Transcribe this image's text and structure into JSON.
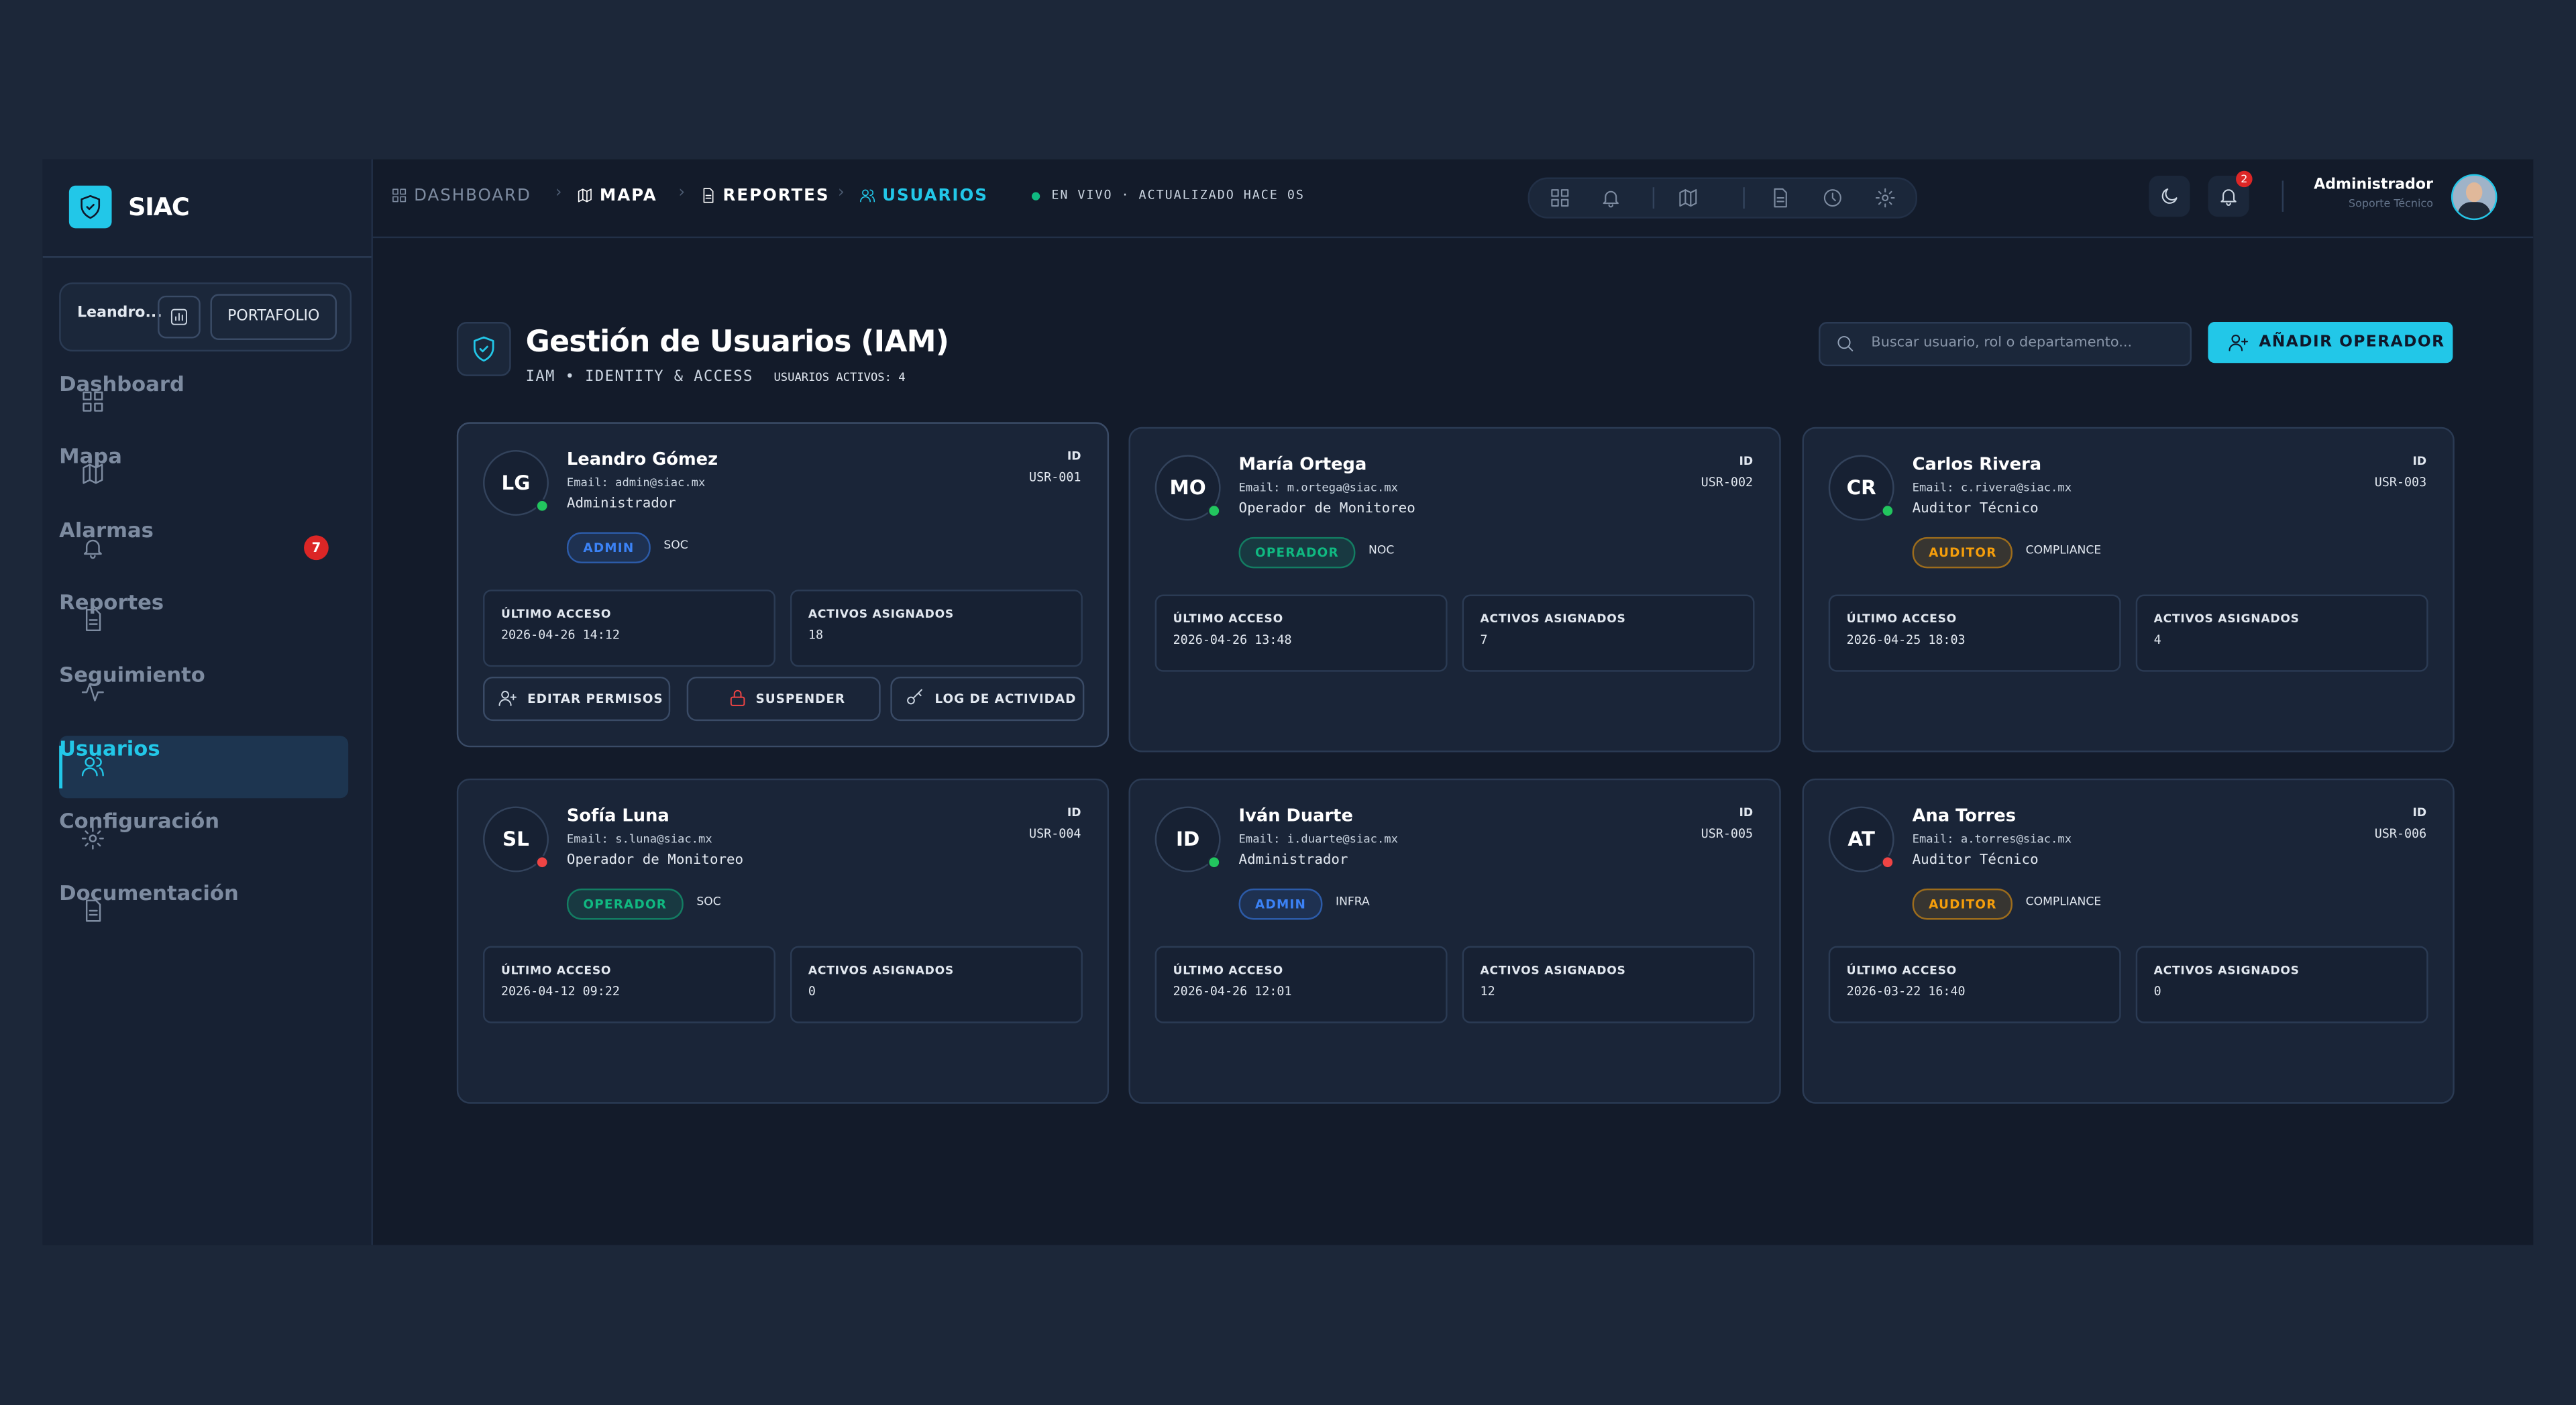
{
  "sidebar": {
    "brand": "SIAC",
    "user": "Leandro...",
    "portfolio": "PORTAFOLIO",
    "nav": [
      {
        "label": "Dashboard",
        "icon": "grid"
      },
      {
        "label": "Mapa",
        "icon": "map"
      },
      {
        "label": "Alarmas",
        "icon": "bell",
        "badge": 7
      },
      {
        "label": "Reportes",
        "icon": "doc"
      },
      {
        "label": "Seguimiento",
        "icon": "pulse"
      },
      {
        "label": "Usuarios",
        "icon": "users"
      },
      {
        "label": "Configuración",
        "icon": "gear"
      },
      {
        "label": "Documentación",
        "icon": "doc"
      }
    ]
  },
  "topbar": {
    "breadcrumb": [
      "DASHBOARD",
      "MAPA",
      "REPORTES",
      "USUARIOS"
    ],
    "live": "EN VIVO · ACTUALIZADO HACE 0S",
    "notifications": 2,
    "user_name": "Administrador",
    "user_role": "Soporte Técnico"
  },
  "header": {
    "title": "Gestión de Usuarios (IAM)",
    "subtitle": "IAM • IDENTITY & ACCESS",
    "active_users": "USUARIOS ACTIVOS: 4",
    "search_placeholder": "Buscar usuario, rol o departamento...",
    "add_button": "AÑADIR OPERADOR"
  },
  "labels": {
    "id": "ID",
    "last_access": "ÚLTIMO ACCESO",
    "assets": "ACTIVOS ASIGNADOS"
  },
  "actions": [
    "EDITAR PERMISOS",
    "SUSPENDER",
    "LOG DE ACTIVIDAD"
  ],
  "users": [
    {
      "initials": "LG",
      "name": "Leandro Gómez",
      "email": "Email: admin@siac.mx",
      "role": "Administrador",
      "badge": "ADMIN",
      "badge_color": "#3b82f6",
      "dept": "SOC",
      "id": "USR-001",
      "last_access": "2026-04-26 14:12",
      "assets": 18,
      "status_color": "#22c55e"
    },
    {
      "initials": "MO",
      "name": "María Ortega",
      "email": "Email: m.ortega@siac.mx",
      "role": "Operador de Monitoreo",
      "badge": "OPERADOR",
      "badge_color": "#10b981",
      "dept": "NOC",
      "id": "USR-002",
      "last_access": "2026-04-26 13:48",
      "assets": 7,
      "status_color": "#22c55e"
    },
    {
      "initials": "CR",
      "name": "Carlos Rivera",
      "email": "Email: c.rivera@siac.mx",
      "role": "Auditor Técnico",
      "badge": "AUDITOR",
      "badge_color": "#f59e0b",
      "dept": "COMPLIANCE",
      "id": "USR-003",
      "last_access": "2026-04-25 18:03",
      "assets": 4,
      "status_color": "#22c55e"
    },
    {
      "initials": "SL",
      "name": "Sofía Luna",
      "email": "Email: s.luna@siac.mx",
      "role": "Operador de Monitoreo",
      "badge": "OPERADOR",
      "badge_color": "#10b981",
      "dept": "SOC",
      "id": "USR-004",
      "last_access": "2026-04-12 09:22",
      "assets": 0,
      "status_color": "#ef4444"
    },
    {
      "initials": "ID",
      "name": "Iván Duarte",
      "email": "Email: i.duarte@siac.mx",
      "role": "Administrador",
      "badge": "ADMIN",
      "badge_color": "#3b82f6",
      "dept": "INFRA",
      "id": "USR-005",
      "last_access": "2026-04-26 12:01",
      "assets": 12,
      "status_color": "#22c55e"
    },
    {
      "initials": "AT",
      "name": "Ana Torres",
      "email": "Email: a.torres@siac.mx",
      "role": "Auditor Técnico",
      "badge": "AUDITOR",
      "badge_color": "#f59e0b",
      "dept": "COMPLIANCE",
      "id": "USR-006",
      "last_access": "2026-03-22 16:40",
      "assets": 0,
      "status_color": "#ef4444"
    }
  ]
}
